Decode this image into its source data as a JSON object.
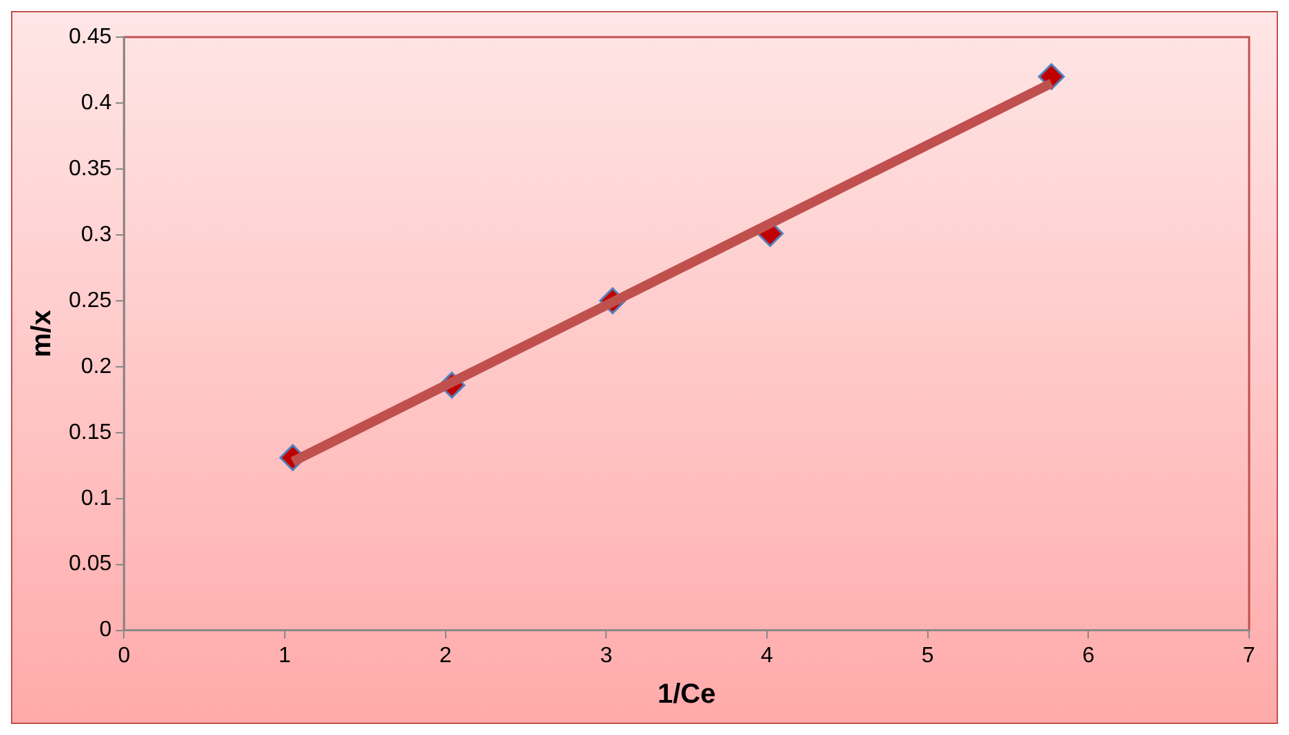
{
  "chart_data": {
    "type": "scatter",
    "xlabel": "1/Ce",
    "ylabel": "m/x",
    "xlim": [
      0,
      7
    ],
    "xticks": [
      0,
      1,
      2,
      3,
      4,
      5,
      6,
      7
    ],
    "ylim": [
      0,
      0.45
    ],
    "yticks": [
      0,
      0.05,
      0.1,
      0.15,
      0.2,
      0.25,
      0.3,
      0.35,
      0.4,
      0.45
    ],
    "grid": false,
    "legend": false,
    "marker": "diamond",
    "series": [
      {
        "type": "scatter",
        "color": "#c00000",
        "x": [
          1.05,
          2.04,
          3.04,
          4.02,
          5.77
        ],
        "values": [
          0.131,
          0.186,
          0.25,
          0.301,
          0.42
        ]
      },
      {
        "type": "line",
        "color": "#c0504d",
        "marker": "none",
        "x": [
          1.05,
          5.77
        ],
        "values": [
          0.128,
          0.415
        ]
      }
    ]
  }
}
